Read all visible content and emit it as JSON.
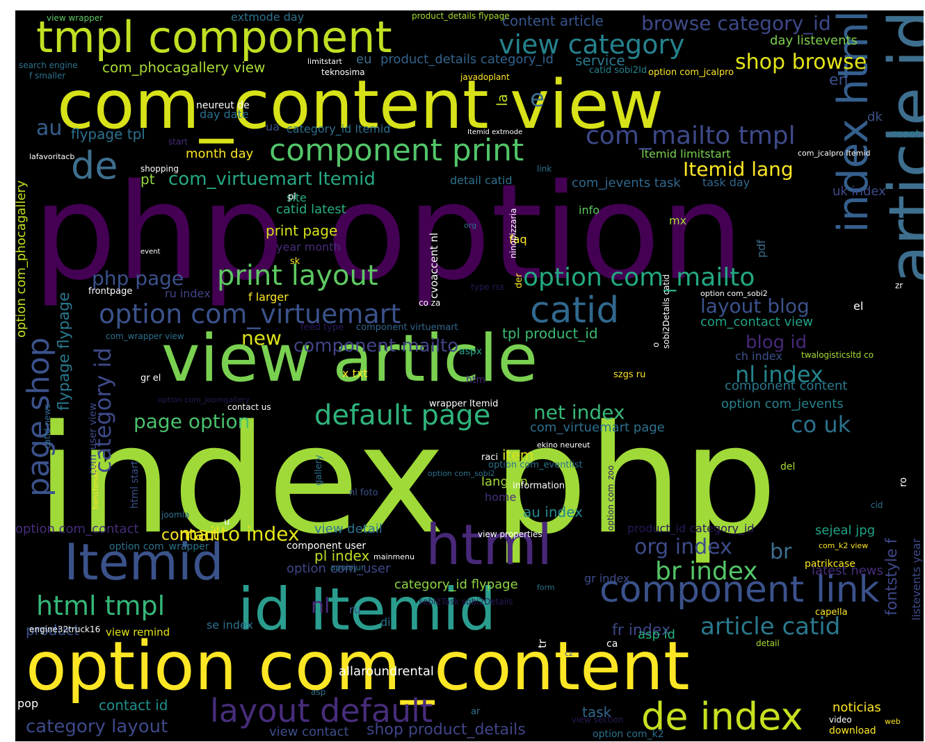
{
  "background": "#000000",
  "palette": [
    "#440154",
    "#3b528b",
    "#21918c",
    "#5ec962",
    "#fde725",
    "#2c728e",
    "#a0da39",
    "#472d7b"
  ],
  "words": [
    {
      "text": "index php",
      "color": "#a0da39"
    },
    {
      "text": "php option",
      "color": "#440154"
    },
    {
      "text": "com_content view",
      "color": "#d8e219"
    },
    {
      "text": "option com_content",
      "color": "#fde725"
    },
    {
      "text": "view article",
      "color": "#7ad151"
    },
    {
      "text": "article id",
      "color": "#3e6f8e"
    },
    {
      "text": "id Itemid",
      "color": "#2a9d8f"
    },
    {
      "text": "tmpl component",
      "color": "#c2df23"
    },
    {
      "text": "html",
      "color": "#482878"
    },
    {
      "text": "Itemid",
      "color": "#3b528b"
    },
    {
      "text": "index html",
      "color": "#355f8d"
    },
    {
      "text": "component link",
      "color": "#3b528b"
    },
    {
      "text": "de index",
      "color": "#c8e020"
    },
    {
      "text": "layout default",
      "color": "#472d7b"
    },
    {
      "text": "component print",
      "color": "#52c569"
    },
    {
      "text": "view category",
      "color": "#26828e"
    },
    {
      "text": "print layout",
      "color": "#5ec962"
    },
    {
      "text": "option com_virtuemart",
      "color": "#3b528b"
    },
    {
      "text": "catid",
      "color": "#31688e"
    },
    {
      "text": "default page",
      "color": "#2fb47c"
    },
    {
      "text": "option com_mailto",
      "color": "#23a983"
    },
    {
      "text": "com_mailto tmpl",
      "color": "#3e4a89"
    },
    {
      "text": "browse category_id",
      "color": "#3e4989"
    },
    {
      "text": "html tmpl",
      "color": "#35b779"
    },
    {
      "text": "page shop",
      "color": "#3b528b"
    },
    {
      "text": "category id",
      "color": "#3e4a89"
    },
    {
      "text": "de",
      "color": "#3e6f8e"
    },
    {
      "text": "Itemid lang",
      "color": "#fde725"
    },
    {
      "text": "nl index",
      "color": "#25848e"
    },
    {
      "text": "article catid",
      "color": "#2a788e"
    },
    {
      "text": "br index",
      "color": "#54c568"
    },
    {
      "text": "com_virtuemart Itemid",
      "color": "#26a784"
    },
    {
      "text": "co uk",
      "color": "#2c728e"
    },
    {
      "text": "mailto index",
      "color": "#e5e419"
    },
    {
      "text": "shop browse",
      "color": "#e3e418"
    },
    {
      "text": "page option",
      "color": "#4ac16d"
    },
    {
      "text": "net index",
      "color": "#37b878"
    },
    {
      "text": "org index",
      "color": "#3e4c8a"
    },
    {
      "text": "layout blog",
      "color": "#3b528b"
    },
    {
      "text": "component mailto",
      "color": "#414487"
    },
    {
      "text": "php page",
      "color": "#3b528b"
    },
    {
      "text": "e",
      "color": "#3e6f8e"
    },
    {
      "text": "new",
      "color": "#dde318"
    },
    {
      "text": "nl",
      "color": "#472d7b"
    },
    {
      "text": "br",
      "color": "#3e6f8e"
    },
    {
      "text": "au",
      "color": "#355f8d"
    },
    {
      "text": "en",
      "color": "#3b528b"
    },
    {
      "text": "blog id",
      "color": "#482878"
    },
    {
      "text": "shop product_details",
      "color": "#404588"
    },
    {
      "text": "category layout",
      "color": "#3e4a89"
    },
    {
      "text": "flypage flypage",
      "color": "#2a788e"
    },
    {
      "text": "option com_phocagallery",
      "color": "#c5e021"
    },
    {
      "text": "com_virtuemart page",
      "color": "#2d708e"
    },
    {
      "text": "option com_jevents",
      "color": "#26828e"
    },
    {
      "text": "component content",
      "color": "#2a788e"
    },
    {
      "text": "tpl product_id",
      "color": "#3dbc74"
    },
    {
      "text": "com_contact view",
      "color": "#20a386"
    },
    {
      "text": "fr index",
      "color": "#3f4889"
    },
    {
      "text": "au index",
      "color": "#23898e"
    },
    {
      "text": "month day",
      "color": "#fde725"
    },
    {
      "text": "print page",
      "color": "#dae319"
    },
    {
      "text": "com_phocagallery view",
      "color": "#a8db34"
    },
    {
      "text": "com_jevents task",
      "color": "#31688e"
    },
    {
      "text": "catid latest",
      "color": "#29af7f"
    },
    {
      "text": "flypage tpl",
      "color": "#2c728e"
    },
    {
      "text": "category_id Itemid",
      "color": "#2d718e"
    },
    {
      "text": "product_details category_id",
      "color": "#33638d"
    },
    {
      "text": "content article",
      "color": "#39558c"
    },
    {
      "text": "uk index",
      "color": "#3e4c8a"
    },
    {
      "text": "lang en",
      "color": "#a2da37"
    },
    {
      "text": "view detail",
      "color": "#2c728e"
    },
    {
      "text": "pl index",
      "color": "#c0df25"
    },
    {
      "text": "option com_user",
      "color": "#3f4788"
    },
    {
      "text": "category_id flypage",
      "color": "#8ed645"
    },
    {
      "text": "sejeal jpg",
      "color": "#20a486"
    },
    {
      "text": "asp id",
      "color": "#29af7f"
    },
    {
      "text": "contact id",
      "color": "#218f8d"
    },
    {
      "text": "noticias",
      "color": "#fde725"
    },
    {
      "text": "view contact",
      "color": "#3d4e8a"
    },
    {
      "text": "option com_contact",
      "color": "#472d7b"
    },
    {
      "text": "fontstyle f",
      "color": "#3f4889"
    },
    {
      "text": "listevents year",
      "color": "#3e4a89"
    },
    {
      "text": "product",
      "color": "#3b528b"
    },
    {
      "text": "view remind",
      "color": "#e5e419"
    },
    {
      "text": "se index",
      "color": "#2d708e"
    },
    {
      "text": "task",
      "color": "#31688e"
    },
    {
      "text": "gr index",
      "color": "#3e4c8a"
    },
    {
      "text": "day listevents",
      "color": "#7fd34e"
    },
    {
      "text": "service",
      "color": "#2a788e"
    },
    {
      "text": "eu",
      "color": "#3e6f8e"
    },
    {
      "text": "la",
      "color": "#bddf26"
    },
    {
      "text": "ua",
      "color": "#3b528b"
    },
    {
      "text": "pt",
      "color": "#95d840"
    },
    {
      "text": "site",
      "color": "#29af7f"
    },
    {
      "text": "info",
      "color": "#5ec962"
    },
    {
      "text": "mx",
      "color": "#a8db34"
    },
    {
      "text": "pdf",
      "color": "#3e6f8e"
    },
    {
      "text": "faq",
      "color": "#fde725"
    },
    {
      "text": "dk",
      "color": "#3b528b"
    },
    {
      "text": "reset",
      "color": "#2a788e"
    },
    {
      "text": "year month",
      "color": "#472d7b"
    },
    {
      "text": "detail catid",
      "color": "#2c728e"
    },
    {
      "text": "task day",
      "color": "#31688e"
    },
    {
      "text": "Itemid limitstart",
      "color": "#7ad151"
    },
    {
      "text": "catid sobi2Id",
      "color": "#26828e"
    },
    {
      "text": "option com_jcalpro",
      "color": "#fde725"
    },
    {
      "text": "ch index",
      "color": "#3b528b"
    },
    {
      "text": "twalogisticsltd co",
      "color": "#a8db34"
    },
    {
      "text": "frontpage",
      "color": "#ffffff"
    },
    {
      "text": "ru index",
      "color": "#414487"
    },
    {
      "text": "com_wrapper view",
      "color": "#2c728e"
    },
    {
      "text": "component virtuemart",
      "color": "#31688e"
    },
    {
      "text": "feed type",
      "color": "#2a1858"
    },
    {
      "text": "x txt",
      "color": "#fde725"
    },
    {
      "text": "aspx",
      "color": "#1fa187"
    },
    {
      "text": "htm",
      "color": "#472d7b"
    },
    {
      "text": "wrapper Itemid",
      "color": "#ffffff"
    },
    {
      "text": "szgs ru",
      "color": "#fde725"
    },
    {
      "text": "gr el",
      "color": "#ffffff"
    },
    {
      "text": "contact us",
      "color": "#ffffff"
    },
    {
      "text": "option com_joomgallery",
      "color": "#2a1858"
    },
    {
      "text": "com_user view",
      "color": "#3e4a89"
    },
    {
      "text": "catid news",
      "color": "#31688e"
    },
    {
      "text": "ekino neureut",
      "color": "#ffffff"
    },
    {
      "text": "raci",
      "color": "#ffffff"
    },
    {
      "text": "item",
      "color": "#dde318"
    },
    {
      "text": "option com_eventlist",
      "color": "#2c728e"
    },
    {
      "text": "option com_zoo",
      "color": "#2a1858"
    },
    {
      "text": "information",
      "color": "#ffffff"
    },
    {
      "text": "nl foto",
      "color": "#3b528b"
    },
    {
      "text": "gallery",
      "color": "#2c728e"
    },
    {
      "text": "home",
      "color": "#472d7b"
    },
    {
      "text": "html start",
      "color": "#3b528b"
    },
    {
      "text": "benchmarks",
      "color": "#fde725"
    },
    {
      "text": "joomla",
      "color": "#2c728e"
    },
    {
      "text": "contact",
      "color": "#fde725"
    },
    {
      "text": "u",
      "color": "#ffffff"
    },
    {
      "text": "view properties",
      "color": "#ffffff"
    },
    {
      "text": "product_id category_id",
      "color": "#2a1858"
    },
    {
      "text": "com_k2 view",
      "color": "#fde725"
    },
    {
      "text": "patrikcase",
      "color": "#fde725"
    },
    {
      "text": "latest news",
      "color": "#472d7b"
    },
    {
      "text": "cid",
      "color": "#2c728e"
    },
    {
      "text": "del",
      "color": "#a8db34"
    },
    {
      "text": "ro",
      "color": "#ffffff"
    },
    {
      "text": "option com_wrapper",
      "color": "#2c728e"
    },
    {
      "text": "component user",
      "color": "#ffffff"
    },
    {
      "text": "mainmenu",
      "color": "#ffffff"
    },
    {
      "text": "apoiojur",
      "color": "#2c728e"
    },
    {
      "text": "form",
      "color": "#2c728e"
    },
    {
      "text": "sobi2Task sobi2Details",
      "color": "#2a1858"
    },
    {
      "text": "capella",
      "color": "#fde725"
    },
    {
      "text": "ru",
      "color": "#3b528b"
    },
    {
      "text": "di",
      "color": "#2c728e"
    },
    {
      "text": "engine32truck16",
      "color": "#ffffff"
    },
    {
      "text": "ca",
      "color": "#ffffff"
    },
    {
      "text": "cz",
      "color": "#3b528b"
    },
    {
      "text": "tr",
      "color": "#ffffff"
    },
    {
      "text": "detail",
      "color": "#a8db34"
    },
    {
      "text": "allaroundrental",
      "color": "#ffffff"
    },
    {
      "text": "asp",
      "color": "#2c728e"
    },
    {
      "text": "pop",
      "color": "#ffffff"
    },
    {
      "text": "ar",
      "color": "#2c728e"
    },
    {
      "text": "view section",
      "color": "#2a1858"
    },
    {
      "text": "option com_k2",
      "color": "#2c728e"
    },
    {
      "text": "video",
      "color": "#ffffff"
    },
    {
      "text": "web",
      "color": "#fde725"
    },
    {
      "text": "download",
      "color": "#fde725"
    },
    {
      "text": "view wrapper",
      "color": "#5ec962"
    },
    {
      "text": "extmode day",
      "color": "#2c728e"
    },
    {
      "text": "product_details flypage",
      "color": "#a8db34"
    },
    {
      "text": "search engine",
      "color": "#2c728e"
    },
    {
      "text": "f smaller",
      "color": "#2c728e"
    },
    {
      "text": "limitstart",
      "color": "#ffffff"
    },
    {
      "text": "teknosima",
      "color": "#ffffff"
    },
    {
      "text": "javadoplant",
      "color": "#fde725"
    },
    {
      "text": "neureut de",
      "color": "#ffffff"
    },
    {
      "text": "day date",
      "color": "#2c728e"
    },
    {
      "text": "start",
      "color": "#472d7b"
    },
    {
      "text": "Itemid extmode",
      "color": "#ffffff"
    },
    {
      "text": "lafavoritacb",
      "color": "#ffffff"
    },
    {
      "text": "shopping",
      "color": "#ffffff"
    },
    {
      "text": "com_jcalpro Itemid",
      "color": "#ffffff"
    },
    {
      "text": "link",
      "color": "#2c728e"
    },
    {
      "text": "pl",
      "color": "#ffffff"
    },
    {
      "text": "ninopizzaria",
      "color": "#ffffff"
    },
    {
      "text": "org",
      "color": "#2c728e"
    },
    {
      "text": "event",
      "color": "#ffffff"
    },
    {
      "text": "sk",
      "color": "#fde725"
    },
    {
      "text": "cvoaccent nl",
      "color": "#ffffff"
    },
    {
      "text": "f larger",
      "color": "#fde725"
    },
    {
      "text": "der",
      "color": "#fde725"
    },
    {
      "text": "type rss",
      "color": "#2a1858"
    },
    {
      "text": "co za",
      "color": "#ffffff"
    },
    {
      "text": "sobi2Details catid",
      "color": "#ffffff"
    },
    {
      "text": "option com_sobi2",
      "color": "#ffffff"
    },
    {
      "text": "zr",
      "color": "#ffffff"
    },
    {
      "text": "el",
      "color": "#ffffff"
    },
    {
      "text": "o",
      "color": "#ffffff"
    },
    {
      "text": "option com_sobi2",
      "color": "#2c728e"
    },
    {
      "text": "rss",
      "color": "#2c728e"
    }
  ]
}
